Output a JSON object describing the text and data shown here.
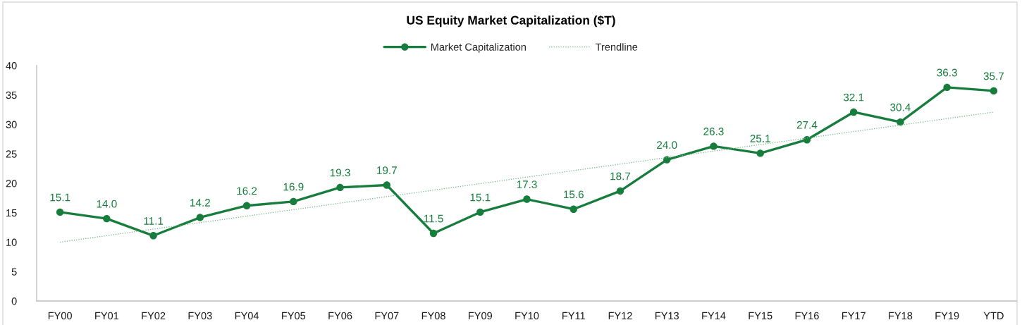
{
  "chart_data": {
    "type": "line",
    "title": "US Equity Market Capitalization ($T)",
    "categories": [
      "FY00",
      "FY01",
      "FY02",
      "FY03",
      "FY04",
      "FY05",
      "FY06",
      "FY07",
      "FY08",
      "FY09",
      "FY10",
      "FY11",
      "FY12",
      "FY13",
      "FY14",
      "FY15",
      "FY16",
      "FY17",
      "FY18",
      "FY19",
      "YTD"
    ],
    "series": [
      {
        "name": "Market Capitalization",
        "color": "#177d3c",
        "marker": "circle",
        "line_style": "solid",
        "values": [
          15.1,
          14.0,
          11.1,
          14.2,
          16.2,
          16.9,
          19.3,
          19.7,
          11.5,
          15.1,
          17.3,
          15.6,
          18.7,
          24.0,
          26.3,
          25.1,
          27.4,
          32.1,
          30.4,
          36.3,
          35.7
        ],
        "value_labels": [
          "15.1",
          "14.0",
          "11.1",
          "14.2",
          "16.2",
          "16.9",
          "19.3",
          "19.7",
          "11.5",
          "15.1",
          "17.3",
          "15.6",
          "18.7",
          "24.0",
          "26.3",
          "25.1",
          "27.4",
          "32.1",
          "30.4",
          "36.3",
          "35.7"
        ]
      },
      {
        "name": "Trendline",
        "type": "line",
        "color": "#70b583",
        "marker": "none",
        "line_style": "dotted",
        "x": [
          "FY00",
          "YTD"
        ],
        "values": [
          10.0,
          32.1
        ]
      }
    ],
    "ylim": [
      0,
      40
    ],
    "yticks": [
      0,
      5,
      10,
      15,
      20,
      25,
      30,
      35,
      40
    ],
    "grid": false,
    "legend": "top"
  }
}
